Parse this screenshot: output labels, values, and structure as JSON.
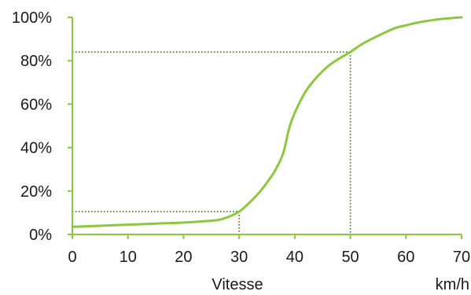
{
  "chart_data": {
    "type": "line",
    "title": "",
    "xlabel": "Vitesse",
    "xunit": "km/h",
    "ylabel": "",
    "xlim": [
      0,
      70
    ],
    "ylim": [
      0,
      100
    ],
    "x_ticks": [
      0,
      10,
      20,
      30,
      40,
      50,
      60,
      70
    ],
    "y_ticks": [
      0,
      20,
      40,
      60,
      80,
      100
    ],
    "y_tick_labels": [
      "0%",
      "20%",
      "40%",
      "60%",
      "80%",
      "100%"
    ],
    "grid": false,
    "legend": "none",
    "series": [
      {
        "color": "#8dc63f",
        "x": [
          0,
          5,
          10,
          15,
          20,
          25,
          26.5,
          28,
          30,
          32,
          34,
          36,
          37,
          38,
          39,
          40,
          42,
          44,
          46,
          48,
          50,
          52,
          55,
          58,
          60,
          62,
          65,
          68,
          70
        ],
        "y": [
          3.5,
          4,
          4.5,
          5,
          5.5,
          6.3,
          6.8,
          8,
          10.5,
          15,
          20.5,
          27.5,
          32,
          38,
          49,
          56,
          66,
          72.5,
          77.5,
          81,
          84,
          87.5,
          91.5,
          95,
          96.3,
          97.5,
          98.8,
          99.6,
          100
        ]
      }
    ],
    "reference_lines": [
      {
        "x": 30,
        "y": 10.5,
        "color": "#3a5a10",
        "style": "dotted"
      },
      {
        "x": 50,
        "y": 84,
        "color": "#3a5a10",
        "style": "dotted"
      }
    ],
    "axis_color": "#8dc63f"
  }
}
